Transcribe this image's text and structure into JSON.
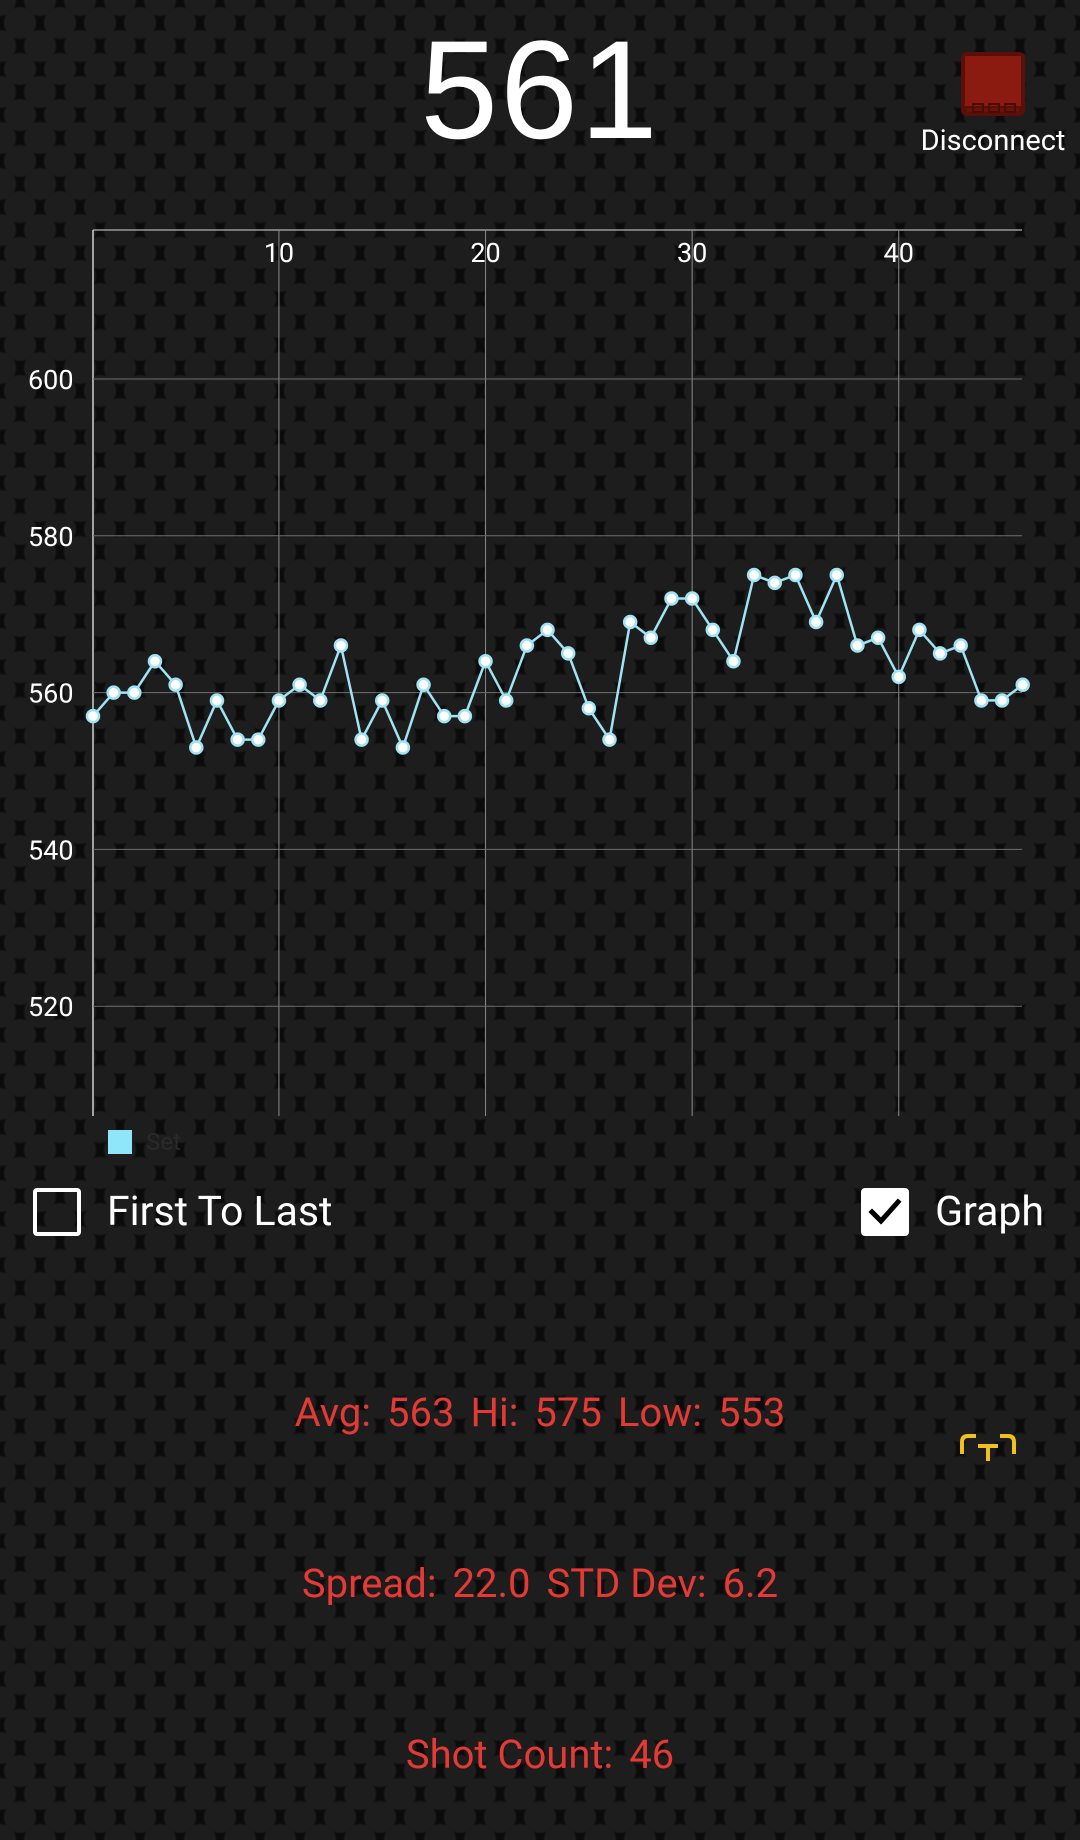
{
  "header": {
    "current_reading": "561",
    "disconnect_label": "Disconnect"
  },
  "chart_data": {
    "type": "line",
    "x_ticks": [
      10,
      20,
      30,
      40
    ],
    "y_ticks": [
      520,
      540,
      560,
      580,
      600
    ],
    "xlim": [
      1,
      46
    ],
    "ylim": [
      506,
      619
    ],
    "grid": true,
    "legend_position": "bottom-left",
    "series": [
      {
        "color": "#9fe3f5",
        "values": [
          557,
          560,
          560,
          564,
          561,
          553,
          559,
          554,
          554,
          559,
          561,
          559,
          566,
          554,
          559,
          553,
          561,
          557,
          557,
          564,
          559,
          566,
          568,
          565,
          558,
          554,
          569,
          567,
          572,
          572,
          568,
          564,
          575,
          574,
          575,
          569,
          575,
          566,
          567,
          562,
          568,
          565,
          566,
          559,
          559,
          561
        ]
      }
    ]
  },
  "legend": {
    "color": "#8fe6fb",
    "label": "Set"
  },
  "controls": {
    "first_to_last": {
      "label": "First To Last",
      "checked": false
    },
    "graph": {
      "label": "Graph",
      "checked": true
    }
  },
  "stats": {
    "avg_label": "Avg:",
    "avg_value": "563",
    "hi_label": "Hi:",
    "hi_value": "575",
    "low_label": "Low:",
    "low_value": "553",
    "spread_label": "Spread:",
    "spread_value": "22.0",
    "std_label": "STD Dev:",
    "std_value": "6.2",
    "count_label": "Shot Count:",
    "count_value": "46"
  },
  "colors": {
    "stats_text": "#e33a35",
    "device_icon": "#8b1a10",
    "accent_icon": "#f0c020"
  }
}
